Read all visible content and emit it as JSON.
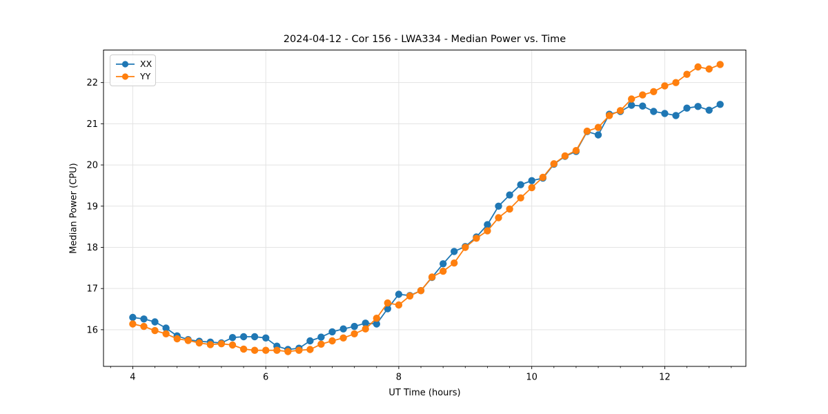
{
  "chart_data": {
    "type": "line",
    "title": "2024-04-12 - Cor 156 - LWA334 - Median Power vs. Time",
    "xlabel": "UT Time (hours)",
    "ylabel": "Median Power (CPU)",
    "xlim": [
      3.56,
      13.22
    ],
    "ylim": [
      15.11,
      22.79
    ],
    "xticks": [
      4,
      6,
      8,
      10,
      12
    ],
    "yticks": [
      16,
      17,
      18,
      19,
      20,
      21,
      22
    ],
    "x_minor_step": 0.3333333,
    "grid": true,
    "grid_color": "#e3e3e3",
    "legend_position": "upper left",
    "x": [
      4.0,
      4.167,
      4.333,
      4.5,
      4.667,
      4.833,
      5.0,
      5.167,
      5.333,
      5.5,
      5.667,
      5.833,
      6.0,
      6.167,
      6.333,
      6.5,
      6.667,
      6.833,
      7.0,
      7.167,
      7.333,
      7.5,
      7.667,
      7.833,
      8.0,
      8.167,
      8.333,
      8.5,
      8.667,
      8.833,
      9.0,
      9.167,
      9.333,
      9.5,
      9.667,
      9.833,
      10.0,
      10.167,
      10.333,
      10.5,
      10.667,
      10.833,
      11.0,
      11.167,
      11.333,
      11.5,
      11.667,
      11.833,
      12.0,
      12.167,
      12.333,
      12.5,
      12.667,
      12.833
    ],
    "series": [
      {
        "name": "XX",
        "color": "#1f77b4",
        "values": [
          16.3,
          16.26,
          16.19,
          16.04,
          15.85,
          15.76,
          15.72,
          15.7,
          15.68,
          15.81,
          15.83,
          15.83,
          15.8,
          15.6,
          15.52,
          15.55,
          15.73,
          15.82,
          15.95,
          16.02,
          16.08,
          16.16,
          16.14,
          16.51,
          16.86,
          16.83,
          16.95,
          17.27,
          17.6,
          17.9,
          18.02,
          18.25,
          18.55,
          19.0,
          19.27,
          19.52,
          19.62,
          19.68,
          20.02,
          20.21,
          20.33,
          20.81,
          20.73,
          21.23,
          21.3,
          21.45,
          21.43,
          21.3,
          21.25,
          21.2,
          21.38,
          21.42,
          21.33,
          21.47
        ]
      },
      {
        "name": "YY",
        "color": "#ff7f0e",
        "values": [
          16.14,
          16.08,
          15.98,
          15.9,
          15.78,
          15.74,
          15.68,
          15.64,
          15.66,
          15.63,
          15.53,
          15.5,
          15.5,
          15.5,
          15.47,
          15.5,
          15.52,
          15.65,
          15.73,
          15.8,
          15.9,
          16.02,
          16.28,
          16.65,
          16.6,
          16.82,
          16.95,
          17.28,
          17.42,
          17.62,
          18.0,
          18.22,
          18.4,
          18.72,
          18.93,
          19.2,
          19.45,
          19.7,
          20.03,
          20.22,
          20.35,
          20.82,
          20.91,
          21.2,
          21.32,
          21.6,
          21.7,
          21.78,
          21.92,
          22.0,
          22.2,
          22.38,
          22.33,
          22.44
        ]
      }
    ]
  }
}
